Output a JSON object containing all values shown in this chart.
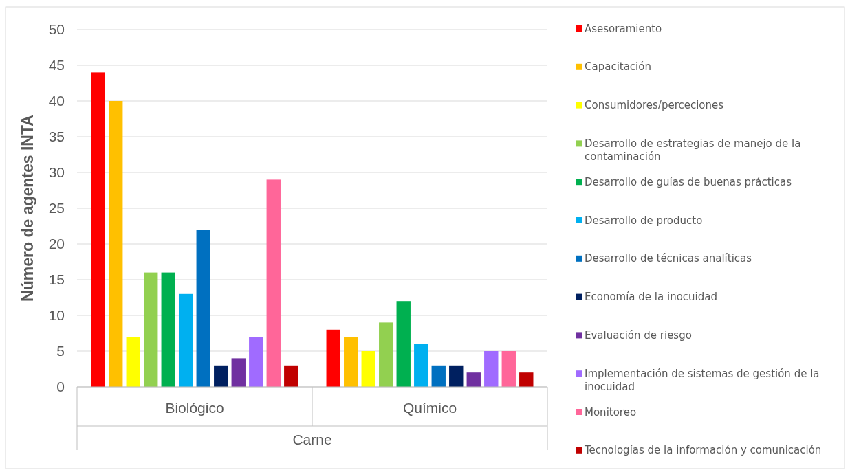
{
  "chart_data": {
    "type": "bar",
    "ylabel": "Número de agentes INTA",
    "xlabel": "Carne",
    "categories": [
      "Biológico",
      "Químico"
    ],
    "ylim": [
      0,
      50
    ],
    "yticks": [
      0,
      5,
      10,
      15,
      20,
      25,
      30,
      35,
      40,
      45,
      50
    ],
    "grid": "y",
    "legend": "right",
    "series": [
      {
        "name": "Asesoramiento",
        "color": "#ff0000",
        "values": [
          44,
          8
        ]
      },
      {
        "name": "Capacitación",
        "color": "#ffc000",
        "values": [
          40,
          7
        ]
      },
      {
        "name": "Consumidores/perceciones",
        "color": "#ffff00",
        "values": [
          7,
          5
        ]
      },
      {
        "name": "Desarrollo de estrategias de manejo de la contaminación",
        "color": "#92d050",
        "values": [
          16,
          9
        ]
      },
      {
        "name": "Desarrollo de guías de buenas prácticas",
        "color": "#00b050",
        "values": [
          16,
          12
        ]
      },
      {
        "name": "Desarrollo de producto",
        "color": "#00b0f0",
        "values": [
          13,
          6
        ]
      },
      {
        "name": "Desarrollo de técnicas analíticas",
        "color": "#0070c0",
        "values": [
          22,
          3
        ]
      },
      {
        "name": "Economía de la inocuidad",
        "color": "#002060",
        "values": [
          3,
          3
        ]
      },
      {
        "name": "Evaluación de riesgo",
        "color": "#7030a0",
        "values": [
          4,
          2
        ]
      },
      {
        "name": "Implementación de sistemas de gestión de la inocuidad",
        "color": "#a06bff",
        "values": [
          7,
          5
        ]
      },
      {
        "name": "Monitoreo",
        "color": "#ff6699",
        "values": [
          29,
          5
        ]
      },
      {
        "name": "Tecnologías de la información y comunicación",
        "color": "#c00000",
        "values": [
          3,
          2
        ]
      }
    ]
  }
}
